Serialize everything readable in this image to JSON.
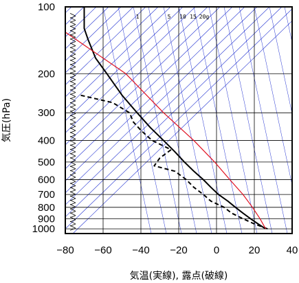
{
  "chart_data": {
    "type": "line",
    "title": "",
    "xlabel": "気温(実線), 露点(破線)",
    "ylabel": "気圧(hPa)",
    "xlim": [
      -80,
      40
    ],
    "ylim": [
      1050,
      100
    ],
    "y_scale": "log",
    "grid": true,
    "xticks": [
      "−80",
      "−60",
      "−40",
      "−20",
      "0",
      "20",
      "40"
    ],
    "yticks": [
      "100",
      "200",
      "300",
      "400",
      "500",
      "600",
      "700",
      "800",
      "900",
      "1000"
    ],
    "mixing_ratio_labels": [
      "1",
      "5",
      "10",
      "15",
      "20g"
    ],
    "colors": {
      "temperature": "#000000",
      "dewpoint": "#000000",
      "parcel": "#e01020",
      "isotherm": "#1f2fd0",
      "grid": "#000000",
      "wind_barb": "#000000"
    },
    "series": [
      {
        "role": "temperature",
        "points": [
          [
            26,
            1000
          ],
          [
            22,
            950
          ],
          [
            18,
            900
          ],
          [
            14,
            850
          ],
          [
            10,
            800
          ],
          [
            6,
            750
          ],
          [
            1,
            700
          ],
          [
            -3,
            650
          ],
          [
            -7,
            600
          ],
          [
            -12,
            550
          ],
          [
            -17,
            500
          ],
          [
            -22,
            450
          ],
          [
            -28,
            400
          ],
          [
            -35,
            350
          ],
          [
            -42,
            300
          ],
          [
            -50,
            250
          ],
          [
            -58,
            200
          ],
          [
            -64,
            170
          ],
          [
            -68,
            140
          ],
          [
            -70,
            125
          ],
          [
            -70,
            100
          ]
        ]
      },
      {
        "role": "dewpoint",
        "points": [
          [
            27,
            1000
          ],
          [
            20,
            950
          ],
          [
            14,
            900
          ],
          [
            8,
            850
          ],
          [
            4,
            800
          ],
          [
            -3,
            750
          ],
          [
            -7,
            700
          ],
          [
            -12,
            650
          ],
          [
            -16,
            600
          ],
          [
            -22,
            550
          ],
          [
            -33,
            520
          ],
          [
            -30,
            480
          ],
          [
            -24,
            440
          ],
          [
            -34,
            400
          ],
          [
            -40,
            360
          ],
          [
            -44,
            330
          ],
          [
            -46,
            300
          ],
          [
            -55,
            270
          ],
          [
            -72,
            250
          ]
        ]
      },
      {
        "role": "parcel",
        "points": [
          [
            26,
            1000
          ],
          [
            23,
            900
          ],
          [
            19,
            800
          ],
          [
            14,
            700
          ],
          [
            7,
            600
          ],
          [
            -1,
            500
          ],
          [
            -12,
            400
          ],
          [
            -28,
            300
          ],
          [
            -48,
            200
          ],
          [
            -80,
            130
          ]
        ]
      }
    ]
  }
}
